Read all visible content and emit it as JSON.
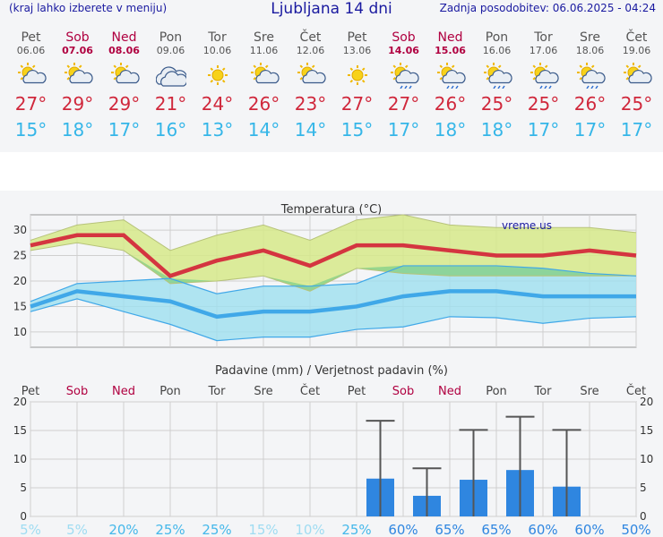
{
  "header": {
    "left_note": "(kraj lahko izberete v meniju)",
    "title": "Ljubljana 14 dni",
    "updated": "Zadnja posodobitev: 06.06.2025 - 04:24"
  },
  "days": [
    {
      "name": "Pet",
      "date": "06.06",
      "weekend": false,
      "icon": "sun-cloud-icon",
      "tmax": "27°",
      "tmin": "15°"
    },
    {
      "name": "Sob",
      "date": "07.06",
      "weekend": true,
      "icon": "sun-cloud-icon",
      "tmax": "29°",
      "tmin": "18°"
    },
    {
      "name": "Ned",
      "date": "08.06",
      "weekend": true,
      "icon": "sun-cloud-icon",
      "tmax": "29°",
      "tmin": "17°"
    },
    {
      "name": "Pon",
      "date": "09.06",
      "weekend": false,
      "icon": "cloud-icon",
      "tmax": "21°",
      "tmin": "16°"
    },
    {
      "name": "Tor",
      "date": "10.06",
      "weekend": false,
      "icon": "sun-icon",
      "tmax": "24°",
      "tmin": "13°"
    },
    {
      "name": "Sre",
      "date": "11.06",
      "weekend": false,
      "icon": "sun-cloud-icon",
      "tmax": "26°",
      "tmin": "14°"
    },
    {
      "name": "Čet",
      "date": "12.06",
      "weekend": false,
      "icon": "sun-cloud-icon",
      "tmax": "23°",
      "tmin": "14°"
    },
    {
      "name": "Pet",
      "date": "13.06",
      "weekend": false,
      "icon": "sun-icon",
      "tmax": "27°",
      "tmin": "15°"
    },
    {
      "name": "Sob",
      "date": "14.06",
      "weekend": true,
      "icon": "sun-rain-icon",
      "tmax": "27°",
      "tmin": "17°"
    },
    {
      "name": "Ned",
      "date": "15.06",
      "weekend": true,
      "icon": "sun-rain-icon",
      "tmax": "26°",
      "tmin": "18°"
    },
    {
      "name": "Pon",
      "date": "16.06",
      "weekend": false,
      "icon": "sun-rain-icon",
      "tmax": "25°",
      "tmin": "18°"
    },
    {
      "name": "Tor",
      "date": "17.06",
      "weekend": false,
      "icon": "sun-rain-icon",
      "tmax": "25°",
      "tmin": "17°"
    },
    {
      "name": "Sre",
      "date": "18.06",
      "weekend": false,
      "icon": "sun-rain-icon",
      "tmax": "26°",
      "tmin": "17°"
    },
    {
      "name": "Čet",
      "date": "19.06",
      "weekend": false,
      "icon": "sun-cloud-icon",
      "tmax": "25°",
      "tmin": "17°"
    }
  ],
  "colors": {
    "weekend": "#b00040",
    "weekday": "#555555",
    "tmax": "#d0283c",
    "tmin": "#35b6e8",
    "max_band": "#d6e98a",
    "min_band": "#9ee0ef",
    "overlap": "#86d18a",
    "max_line": "#d43540",
    "min_line": "#40a8e8",
    "bar": "#2f86e0",
    "error": "#555555"
  },
  "chart_data": [
    {
      "type": "area",
      "title": "Temperatura (°C)",
      "watermark": "vreme.us",
      "ylim": [
        7,
        33
      ],
      "yticks": [
        10,
        15,
        20,
        25,
        30
      ],
      "grid": true,
      "x": [
        "06.06",
        "07.06",
        "08.06",
        "09.06",
        "10.06",
        "11.06",
        "12.06",
        "13.06",
        "14.06",
        "15.06",
        "16.06",
        "17.06",
        "18.06",
        "19.06"
      ],
      "series": [
        {
          "role": "max_mean",
          "values": [
            27,
            29,
            29,
            21,
            24,
            26,
            23,
            27,
            27,
            26,
            25,
            25,
            26,
            25
          ]
        },
        {
          "role": "max_upper",
          "values": [
            28,
            31,
            32,
            26,
            29,
            31,
            28,
            32,
            33,
            31,
            30.5,
            30.5,
            30.5,
            29.5
          ]
        },
        {
          "role": "max_lower",
          "values": [
            26,
            27.5,
            26,
            19.5,
            20,
            21,
            18,
            22.5,
            21.5,
            21,
            21,
            21,
            21,
            21
          ]
        },
        {
          "role": "min_mean",
          "values": [
            15,
            18,
            17,
            16,
            13,
            14,
            14,
            15,
            17,
            18,
            18,
            17,
            17,
            17
          ]
        },
        {
          "role": "min_upper",
          "values": [
            16,
            19.5,
            20,
            20.5,
            17.5,
            19,
            19,
            19.5,
            23,
            23,
            23,
            22.5,
            21.5,
            21
          ]
        },
        {
          "role": "min_lower",
          "values": [
            14,
            16.5,
            14,
            11.5,
            8.3,
            9,
            9,
            10.5,
            11,
            13,
            12.8,
            11.7,
            12.7,
            13
          ]
        }
      ]
    },
    {
      "type": "bar",
      "title": "Padavine (mm) / Verjetnost padavin (%)",
      "ylim": [
        0,
        20
      ],
      "yticks": [
        0,
        5,
        10,
        15,
        20
      ],
      "categories": [
        "Pet",
        "Sob",
        "Ned",
        "Pon",
        "Tor",
        "Sre",
        "Čet",
        "Pet",
        "Sob",
        "Ned",
        "Pon",
        "Tor",
        "Sre",
        "Čet"
      ],
      "weekend": [
        false,
        true,
        true,
        false,
        false,
        false,
        false,
        false,
        true,
        true,
        false,
        false,
        false,
        false
      ],
      "values": [
        0,
        0,
        0,
        0,
        0,
        0,
        0,
        0,
        6.6,
        3.6,
        6.4,
        8.1,
        5.2,
        0
      ],
      "error_max": [
        0,
        0,
        0,
        0,
        0,
        0,
        0,
        0,
        16.7,
        8.4,
        15.1,
        17.4,
        15.1,
        0
      ],
      "probability": [
        "5%",
        "5%",
        "20%",
        "25%",
        "25%",
        "15%",
        "10%",
        "25%",
        "60%",
        "65%",
        "65%",
        "60%",
        "60%",
        "50%"
      ],
      "probability_values": [
        5,
        5,
        20,
        25,
        25,
        15,
        10,
        25,
        60,
        65,
        65,
        60,
        60,
        50
      ]
    }
  ]
}
